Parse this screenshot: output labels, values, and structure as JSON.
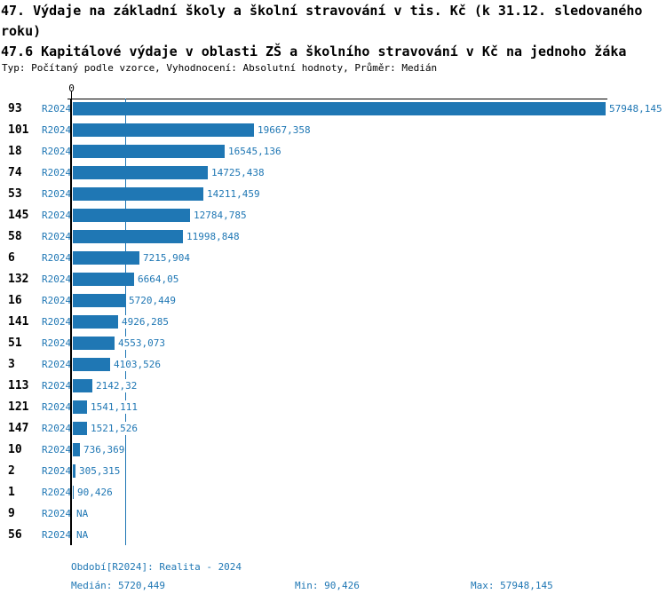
{
  "header": {
    "title": "47. Výdaje na základní školy a školní stravování v tis. Kč (k 31.12. sledovaného roku)",
    "subtitle": "47.6 Kapitálové výdaje v oblasti ZŠ a školního stravování v Kč na jednoho žáka",
    "meta": "Typ: Počítaný podle vzorce, Vyhodnocení: Absolutní hodnoty, Průměr: Medián"
  },
  "chart_data": {
    "type": "bar",
    "orientation": "horizontal",
    "axis_tick_label": "0",
    "xlim": [
      0,
      57948.145
    ],
    "median": 5720.449,
    "grid": false,
    "legend": false,
    "period_label": "R2024",
    "colors": {
      "bar": "#1f77b4",
      "text": "#1f77b4",
      "axis": "#000000",
      "median_line": "#1f77b4"
    },
    "rows": [
      {
        "category": "93",
        "period": "R2024",
        "value": 57948.145,
        "display": "57948,145"
      },
      {
        "category": "101",
        "period": "R2024",
        "value": 19667.358,
        "display": "19667,358"
      },
      {
        "category": "18",
        "period": "R2024",
        "value": 16545.136,
        "display": "16545,136"
      },
      {
        "category": "74",
        "period": "R2024",
        "value": 14725.438,
        "display": "14725,438"
      },
      {
        "category": "53",
        "period": "R2024",
        "value": 14211.459,
        "display": "14211,459"
      },
      {
        "category": "145",
        "period": "R2024",
        "value": 12784.785,
        "display": "12784,785"
      },
      {
        "category": "58",
        "period": "R2024",
        "value": 11998.848,
        "display": "11998,848"
      },
      {
        "category": "6",
        "period": "R2024",
        "value": 7215.904,
        "display": "7215,904"
      },
      {
        "category": "132",
        "period": "R2024",
        "value": 6664.05,
        "display": "6664,05"
      },
      {
        "category": "16",
        "period": "R2024",
        "value": 5720.449,
        "display": "5720,449"
      },
      {
        "category": "141",
        "period": "R2024",
        "value": 4926.285,
        "display": "4926,285"
      },
      {
        "category": "51",
        "period": "R2024",
        "value": 4553.073,
        "display": "4553,073"
      },
      {
        "category": "3",
        "period": "R2024",
        "value": 4103.526,
        "display": "4103,526"
      },
      {
        "category": "113",
        "period": "R2024",
        "value": 2142.32,
        "display": "2142,32"
      },
      {
        "category": "121",
        "period": "R2024",
        "value": 1541.111,
        "display": "1541,111"
      },
      {
        "category": "147",
        "period": "R2024",
        "value": 1521.526,
        "display": "1521,526"
      },
      {
        "category": "10",
        "period": "R2024",
        "value": 736.369,
        "display": "736,369"
      },
      {
        "category": "2",
        "period": "R2024",
        "value": 305.315,
        "display": "305,315"
      },
      {
        "category": "1",
        "period": "R2024",
        "value": 90.426,
        "display": "90,426"
      },
      {
        "category": "9",
        "period": "R2024",
        "value": null,
        "display": "NA"
      },
      {
        "category": "56",
        "period": "R2024",
        "value": null,
        "display": "NA"
      }
    ]
  },
  "footer": {
    "period_info": "Období[R2024]: Realita - 2024",
    "median": "Medián: 5720,449",
    "min": "Min: 90,426",
    "max": "Max: 57948,145"
  }
}
